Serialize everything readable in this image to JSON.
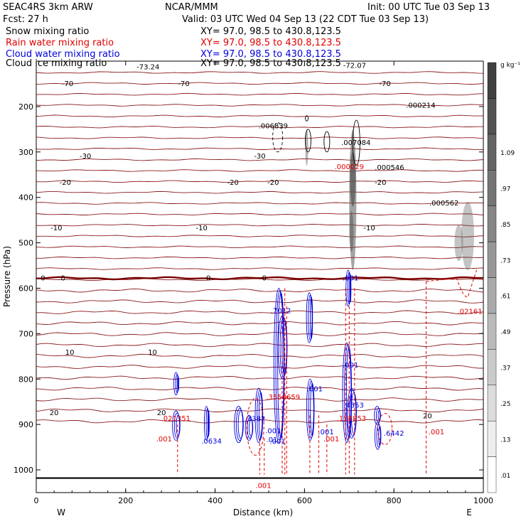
{
  "header": {
    "left1": "SEAC4RS  3km ARW",
    "left2": "Fcst:    27 h",
    "center1": "NCAR/MMM",
    "right1": "Init: 00 UTC Tue 03 Sep 13",
    "center2": "Valid: 03 UTC Wed 04 Sep 13 (22 CDT Tue 03 Sep 13)"
  },
  "fields": [
    {
      "name": "Snow mixing ratio",
      "xy": "XY=  97.0, 98.5 to 430.8,123.5",
      "color": "#000000"
    },
    {
      "name": "Rain water mixing ratio",
      "xy": "XY=  97.0, 98.5 to 430.8,123.5",
      "color": "#e00000"
    },
    {
      "name": "Cloud water mixing ratio",
      "xy": "XY=  97.0, 98.5 to 430.8,123.5",
      "color": "#0000e0"
    },
    {
      "name": "Cloud ice mixing ratio",
      "xy": "XY=  97.0, 98.5 to 430.8,123.5",
      "color": "#000000"
    }
  ],
  "colors": {
    "temperature": "#8b1a1a",
    "freezing": "#7a0000",
    "rain": "#e00000",
    "cloud": "#0000e0",
    "snow": "#000000"
  },
  "chart_data": {
    "type": "cross-section",
    "xlabel": "Distance (km)",
    "ylabel": "Pressure (hPa)",
    "xlim": [
      0,
      1000
    ],
    "ylim": [
      1050,
      100
    ],
    "x_ticks": [
      0,
      200,
      400,
      600,
      800,
      1000
    ],
    "y_ticks": [
      200,
      300,
      400,
      500,
      600,
      700,
      800,
      900,
      1000
    ],
    "end_labels": {
      "left": "W",
      "right": "E"
    },
    "colorbar": {
      "unit": "g kg⁻¹",
      "labels": [
        ".01",
        ".13",
        ".25",
        ".37",
        ".49",
        ".61",
        ".73",
        ".85",
        ".97",
        "1.09"
      ],
      "min": 0.01,
      "step": 0.12
    },
    "temperature_isotherms": [
      {
        "label": "-70",
        "p": 150,
        "positions": [
          70,
          330,
          780
        ]
      },
      {
        "label": "-30",
        "p": 310,
        "positions": [
          110,
          500
        ]
      },
      {
        "label": "-20",
        "p": 368,
        "positions": [
          65,
          440,
          530,
          770
        ]
      },
      {
        "label": "-10",
        "p": 468,
        "positions": [
          45,
          370,
          745
        ]
      },
      {
        "label": "0",
        "p": 578,
        "positions": [
          15,
          60,
          385,
          510
        ]
      },
      {
        "label": "10",
        "p": 742,
        "positions": [
          75,
          260
        ]
      },
      {
        "label": "20",
        "p": 875,
        "positions": [
          40,
          280
        ]
      }
    ],
    "extra_temperature_labels": [
      {
        "text": "-73.24",
        "x": 250,
        "p": 113
      },
      {
        "text": "-72.07",
        "x": 712,
        "p": 110
      },
      {
        "text": "20",
        "x": 875,
        "p": 882
      }
    ],
    "maxima": [
      {
        "text": ".000214",
        "x": 860,
        "p": 198,
        "field": "snow"
      },
      {
        "text": ".006839",
        "x": 530,
        "p": 243,
        "field": "snow"
      },
      {
        "text": ".007084",
        "x": 715,
        "p": 280,
        "field": "snow"
      },
      {
        "text": ".000546",
        "x": 790,
        "p": 335,
        "field": "snow"
      },
      {
        "text": ".000562",
        "x": 912,
        "p": 413,
        "field": "snow"
      },
      {
        "text": ".000029",
        "x": 700,
        "p": 333,
        "field": "rain"
      },
      {
        "text": ".02161",
        "x": 970,
        "p": 652,
        "field": "rain"
      },
      {
        "text": ".3558659",
        "x": 552,
        "p": 840,
        "field": "rain"
      },
      {
        "text": ".021351",
        "x": 312,
        "p": 887,
        "field": "rain"
      },
      {
        "text": ".158853",
        "x": 705,
        "p": 887,
        "field": "rain"
      },
      {
        "text": ".001",
        "x": 895,
        "p": 917,
        "field": "rain"
      },
      {
        "text": ".001",
        "x": 660,
        "p": 933,
        "field": "rain"
      },
      {
        "text": ".001",
        "x": 508,
        "p": 1035,
        "field": "rain"
      },
      {
        "text": ".001",
        "x": 286,
        "p": 933,
        "field": "rain"
      },
      {
        "text": ".7012",
        "x": 547,
        "p": 650,
        "field": "cloud"
      },
      {
        "text": ".001",
        "x": 703,
        "p": 578,
        "field": "cloud"
      },
      {
        "text": ".001",
        "x": 703,
        "p": 770,
        "field": "cloud"
      },
      {
        "text": ".001",
        "x": 623,
        "p": 822,
        "field": "cloud"
      },
      {
        "text": ".4353",
        "x": 710,
        "p": 858,
        "field": "cloud"
      },
      {
        "text": ".7382",
        "x": 490,
        "p": 888,
        "field": "cloud"
      },
      {
        "text": ".0634",
        "x": 392,
        "p": 937,
        "field": "cloud"
      },
      {
        "text": ".001",
        "x": 648,
        "p": 917,
        "field": "cloud"
      },
      {
        "text": ".6442",
        "x": 800,
        "p": 920,
        "field": "cloud"
      },
      {
        "text": ".001",
        "x": 530,
        "p": 915,
        "field": "cloud"
      },
      {
        "text": ".01",
        "x": 527,
        "p": 934,
        "field": "cloud"
      },
      {
        "text": ".001",
        "x": 540,
        "p": 938,
        "field": "cloud"
      }
    ]
  }
}
